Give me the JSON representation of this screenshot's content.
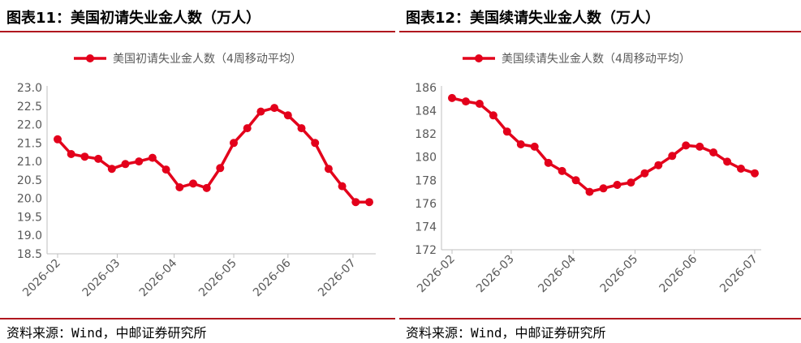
{
  "panels": [
    {
      "title": "图表11：美国初请失业金人数（万人）",
      "source": "资料来源：Wind，中邮证券研究所",
      "chart_data": {
        "type": "line",
        "series": [
          {
            "name": "美国初请失业金人数（4周移动平均）",
            "color": "#e3001b",
            "values": [
              21.6,
              21.2,
              21.13,
              21.07,
              20.8,
              20.93,
              21.0,
              21.1,
              20.78,
              20.3,
              20.4,
              20.28,
              20.82,
              21.5,
              21.9,
              22.35,
              22.45,
              22.25,
              21.9,
              21.5,
              20.8,
              20.33,
              19.9,
              19.9
            ]
          }
        ],
        "x_ticks": [
          "2026-02",
          "2026-03",
          "2026-04",
          "2026-05",
          "2026-06",
          "2026-07"
        ],
        "x_tick_positions": [
          0,
          4.4,
          8.6,
          13.0,
          17.0,
          21.8
        ],
        "y_ticks": [
          "23.0",
          "22.5",
          "22.0",
          "21.5",
          "21.0",
          "20.5",
          "20.0",
          "19.5",
          "19.0",
          "18.5"
        ],
        "ylim": [
          18.5,
          23.0
        ],
        "legend_position": "top-center",
        "grid": false
      }
    },
    {
      "title": "图表12：美国续请失业金人数（万人）",
      "source": "资料来源：Wind，中邮证券研究所",
      "chart_data": {
        "type": "line",
        "series": [
          {
            "name": "美国续请失业金人数（4周移动平均）",
            "color": "#e3001b",
            "values": [
              185.1,
              184.8,
              184.6,
              183.6,
              182.2,
              181.1,
              180.9,
              179.5,
              178.8,
              178.0,
              177.0,
              177.3,
              177.6,
              177.8,
              178.6,
              179.3,
              180.1,
              181.0,
              180.9,
              180.4,
              179.6,
              179.0,
              178.6
            ]
          }
        ],
        "x_ticks": [
          "2026-02",
          "2026-03",
          "2026-04",
          "2026-05",
          "2026-06",
          "2026-07"
        ],
        "x_tick_positions": [
          0,
          4.3,
          8.8,
          13.3,
          17.6,
          22.0
        ],
        "y_ticks": [
          "186",
          "184",
          "182",
          "180",
          "178",
          "176",
          "174",
          "172"
        ],
        "ylim": [
          172,
          186
        ],
        "legend_position": "top-center",
        "grid": false
      }
    }
  ]
}
